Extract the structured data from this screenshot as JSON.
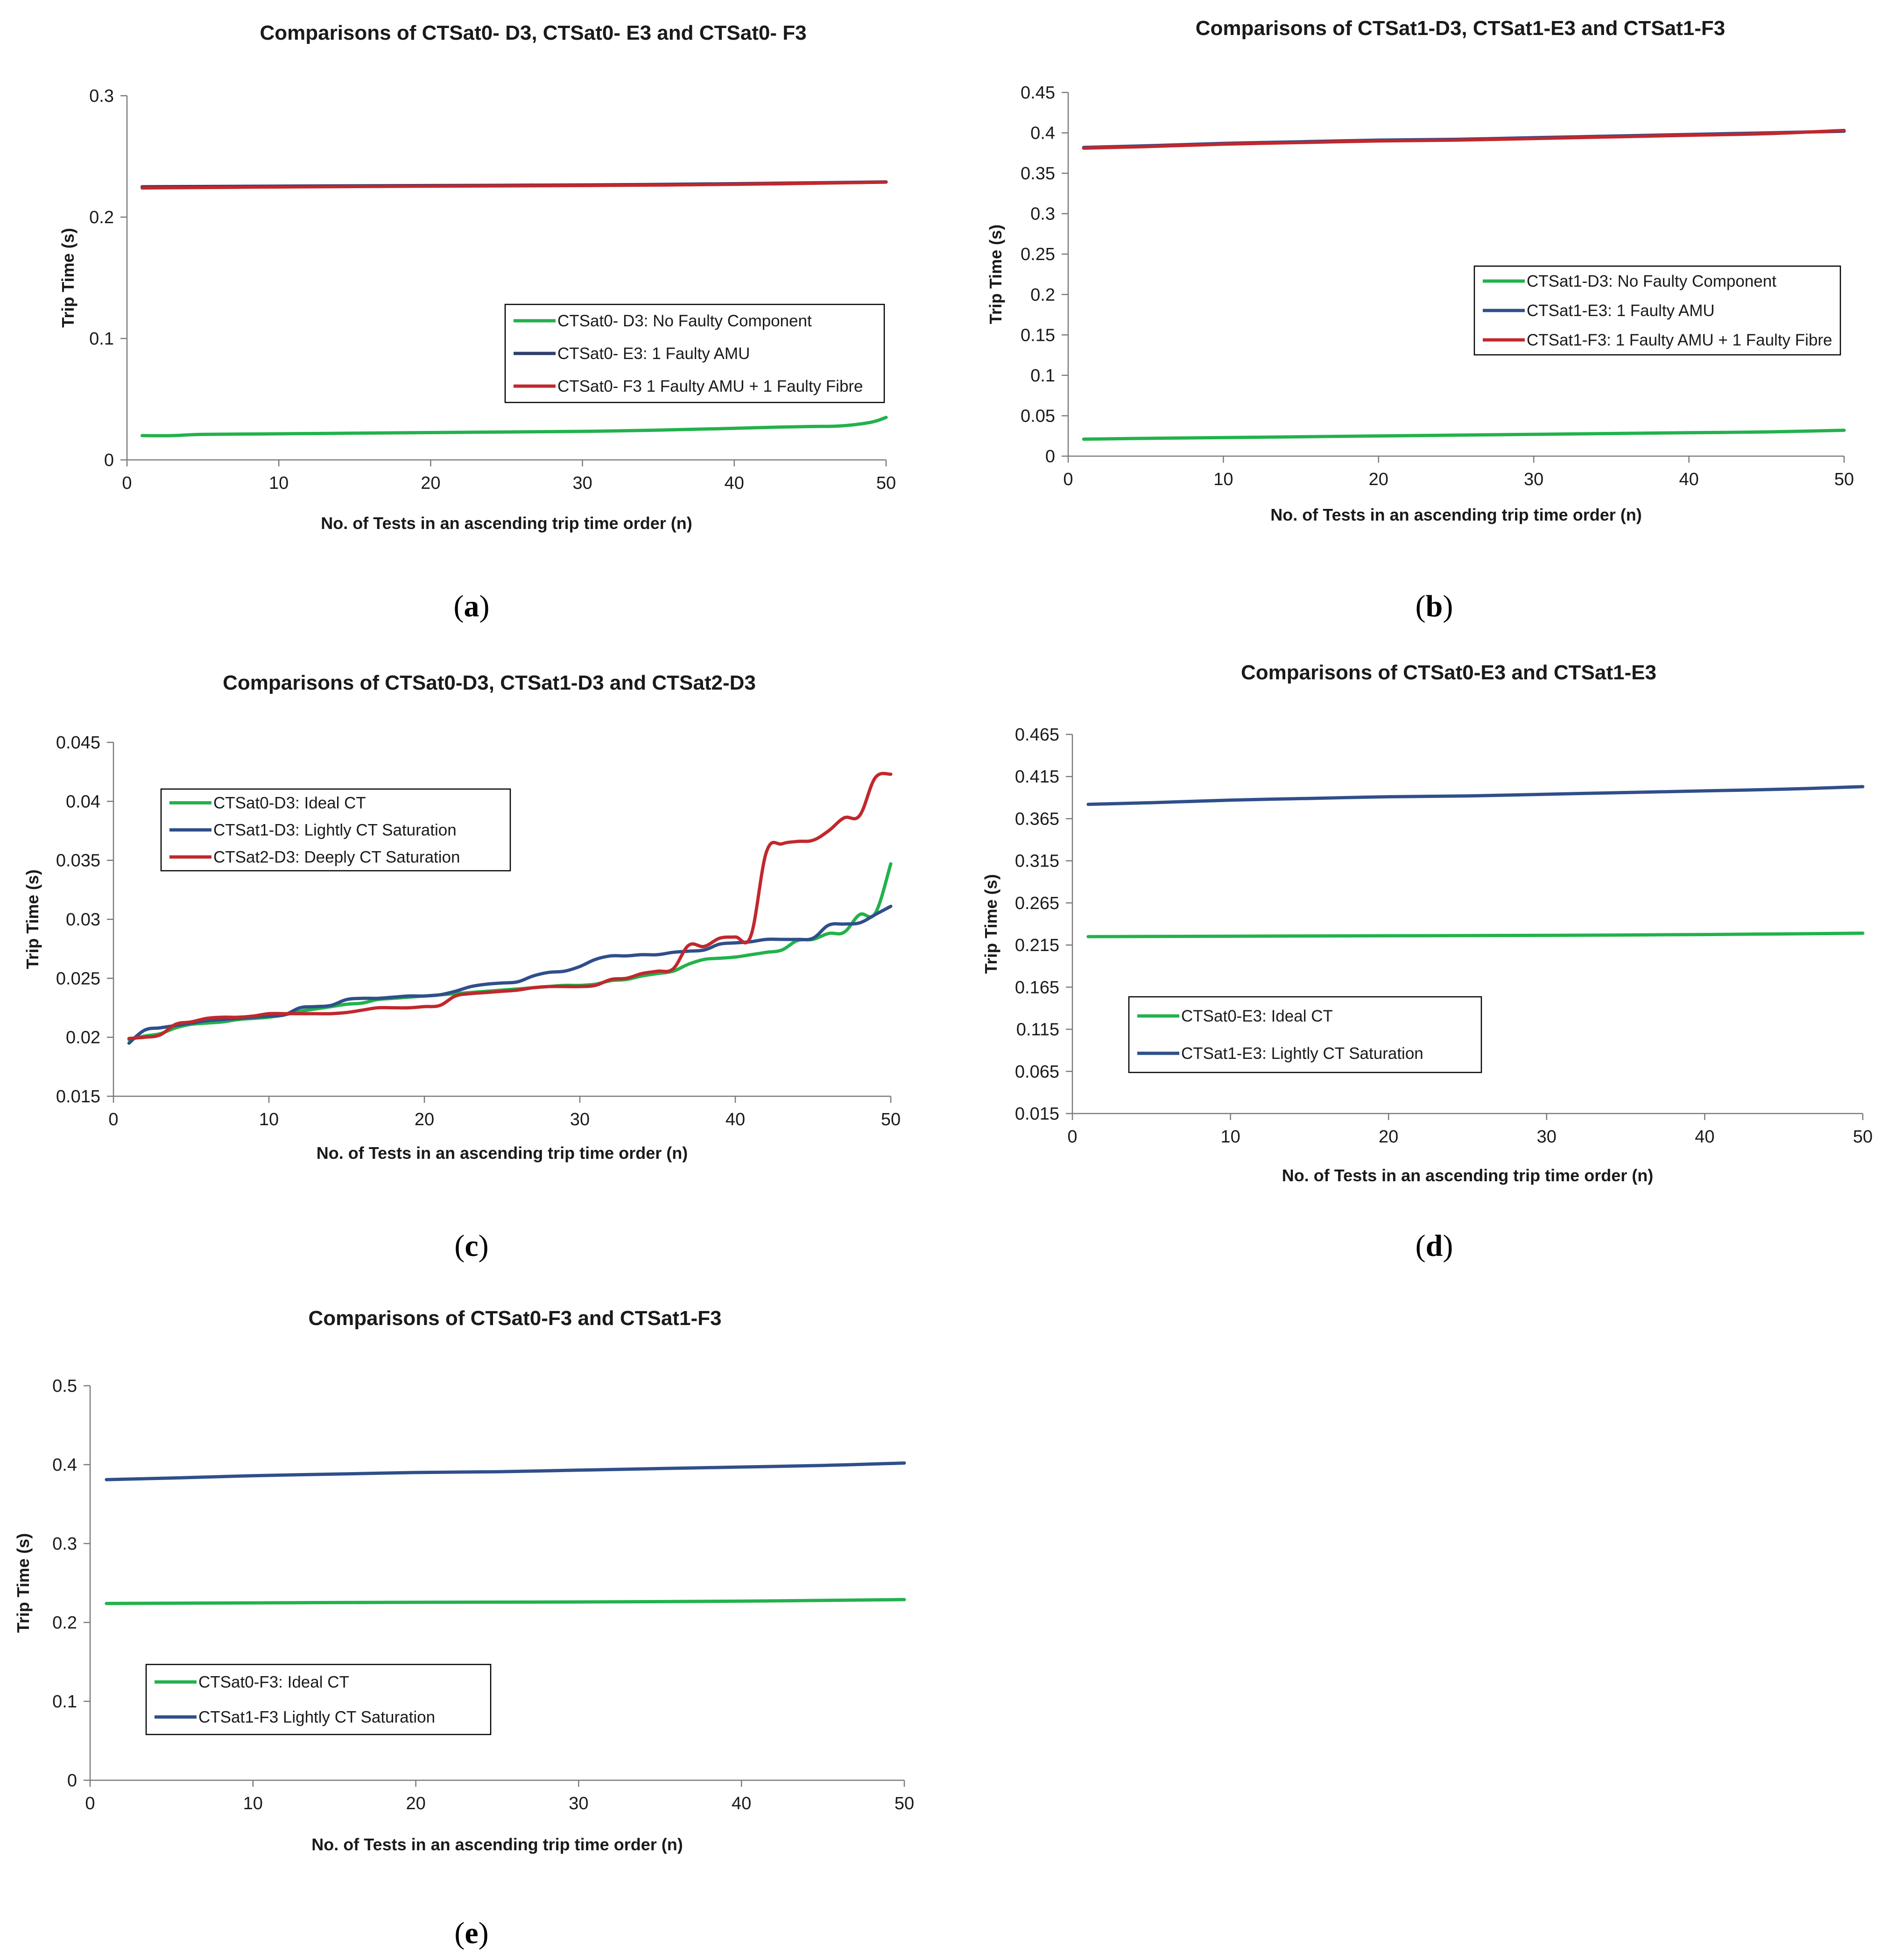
{
  "chart_data": [
    {
      "id": "a",
      "type": "line",
      "caption_letter": "a",
      "title": "Comparisons of CTSat0- D3, CTSat0- E3 and CTSat0- F3",
      "xlabel": "No. of Tests in an ascending trip  time order (n)",
      "ylabel": "Trip Time (s)",
      "xlim": [
        0,
        50
      ],
      "ylim": [
        0,
        0.3
      ],
      "xticks": [
        "0",
        "10",
        "20",
        "30",
        "40",
        "50"
      ],
      "yticks": [
        "0",
        "0.1",
        "0.2",
        "0.3"
      ],
      "legend_position": "middle-right",
      "series": [
        {
          "name": "CTSat0- D3: No Faulty Component",
          "color": "#22b24c",
          "x": [
            1,
            3,
            5,
            10,
            15,
            20,
            25,
            30,
            35,
            40,
            43,
            45,
            47,
            49,
            50
          ],
          "y": [
            0.02,
            0.02,
            0.021,
            0.0215,
            0.022,
            0.0225,
            0.023,
            0.0235,
            0.0245,
            0.026,
            0.027,
            0.0275,
            0.028,
            0.031,
            0.035
          ]
        },
        {
          "name": "CTSat0- E3: 1 Faulty AMU",
          "color": "#2f3f6b",
          "x": [
            1,
            10,
            20,
            30,
            40,
            50
          ],
          "y": [
            0.225,
            0.2255,
            0.226,
            0.2265,
            0.2275,
            0.229
          ]
        },
        {
          "name": "CTSat0- F3 1 Faulty AMU + 1 Faulty Fibre",
          "color": "#c0282d",
          "x": [
            1,
            10,
            20,
            30,
            40,
            50
          ],
          "y": [
            0.224,
            0.2248,
            0.2255,
            0.226,
            0.227,
            0.2288
          ]
        }
      ]
    },
    {
      "id": "b",
      "type": "line",
      "caption_letter": "b",
      "title": "Comparisons of CTSat1-D3, CTSat1-E3 and CTSat1-F3",
      "xlabel": "No. of Tests in an ascending trip time order (n)",
      "ylabel": "Trip Time (s)",
      "xlim": [
        0,
        50
      ],
      "ylim": [
        0,
        0.45
      ],
      "xticks": [
        "0",
        "10",
        "20",
        "30",
        "40",
        "50"
      ],
      "yticks": [
        "0",
        "0.05",
        "0.1",
        "0.15",
        "0.2",
        "0.25",
        "0.3",
        "0.35",
        "0.4",
        "0.45"
      ],
      "legend_position": "middle-right",
      "series": [
        {
          "name": "CTSat1-D3: No Faulty Component",
          "color": "#22b24c",
          "x": [
            1,
            5,
            10,
            15,
            20,
            25,
            30,
            35,
            40,
            45,
            50
          ],
          "y": [
            0.021,
            0.022,
            0.023,
            0.024,
            0.025,
            0.026,
            0.027,
            0.028,
            0.029,
            0.03,
            0.032
          ]
        },
        {
          "name": "CTSat1-E3: 1 Faulty AMU",
          "color": "#2f4f8a",
          "x": [
            1,
            5,
            10,
            15,
            20,
            25,
            30,
            35,
            40,
            45,
            50
          ],
          "y": [
            0.382,
            0.384,
            0.387,
            0.389,
            0.391,
            0.392,
            0.394,
            0.396,
            0.398,
            0.4,
            0.402
          ]
        },
        {
          "name": "CTSat1-F3: 1 Faulty AMU + 1 Faulty Fibre",
          "color": "#c0282d",
          "x": [
            1,
            5,
            10,
            15,
            20,
            25,
            30,
            35,
            40,
            45,
            50
          ],
          "y": [
            0.381,
            0.383,
            0.386,
            0.388,
            0.39,
            0.391,
            0.393,
            0.395,
            0.397,
            0.399,
            0.403
          ]
        }
      ]
    },
    {
      "id": "c",
      "type": "line",
      "caption_letter": "c",
      "title": "Comparisons of CTSat0-D3, CTSat1-D3 and CTSat2-D3",
      "xlabel": "No. of Tests in an ascending trip time order (n)",
      "ylabel": "Trip Time (s)",
      "xlim": [
        0,
        50
      ],
      "ylim": [
        0.015,
        0.045
      ],
      "xticks": [
        "0",
        "10",
        "20",
        "30",
        "40",
        "50"
      ],
      "yticks": [
        "0.015",
        "0.02",
        "0.025",
        "0.03",
        "0.035",
        "0.04",
        "0.045"
      ],
      "legend_position": "top-left",
      "series": [
        {
          "name": "CTSat0-D3: Ideal CT",
          "color": "#22b24c",
          "x": [
            1,
            2,
            3,
            4,
            5,
            6,
            7,
            8,
            9,
            10,
            11,
            12,
            13,
            14,
            15,
            16,
            17,
            18,
            19,
            20,
            21,
            22,
            23,
            24,
            25,
            26,
            27,
            28,
            29,
            30,
            31,
            32,
            33,
            34,
            35,
            36,
            37,
            38,
            39,
            40,
            41,
            42,
            43,
            44,
            45,
            46,
            47,
            48,
            49,
            50
          ],
          "y": [
            0.0198,
            0.0201,
            0.0203,
            0.0208,
            0.0211,
            0.0212,
            0.0213,
            0.0215,
            0.0216,
            0.0217,
            0.0219,
            0.0222,
            0.0224,
            0.0226,
            0.0228,
            0.0229,
            0.0232,
            0.0233,
            0.0234,
            0.0235,
            0.0236,
            0.0237,
            0.0238,
            0.0239,
            0.024,
            0.0241,
            0.0242,
            0.0243,
            0.0244,
            0.0244,
            0.0245,
            0.0248,
            0.0249,
            0.0252,
            0.0254,
            0.0256,
            0.0262,
            0.0266,
            0.0267,
            0.0268,
            0.027,
            0.0272,
            0.0274,
            0.0282,
            0.0283,
            0.0288,
            0.0289,
            0.0304,
            0.0305,
            0.0347
          ]
        },
        {
          "name": "CTSat1-D3: Lightly CT Saturation",
          "color": "#2f4f8a",
          "x": [
            1,
            2,
            3,
            4,
            5,
            6,
            7,
            8,
            9,
            10,
            11,
            12,
            13,
            14,
            15,
            16,
            17,
            18,
            19,
            20,
            21,
            22,
            23,
            24,
            25,
            26,
            27,
            28,
            29,
            30,
            31,
            32,
            33,
            34,
            35,
            36,
            37,
            38,
            39,
            40,
            41,
            42,
            43,
            44,
            45,
            46,
            47,
            48,
            49,
            50
          ],
          "y": [
            0.0195,
            0.0206,
            0.0208,
            0.021,
            0.0212,
            0.0214,
            0.0215,
            0.0216,
            0.0217,
            0.0218,
            0.0219,
            0.0225,
            0.0226,
            0.0227,
            0.0232,
            0.0233,
            0.0233,
            0.0234,
            0.0235,
            0.0235,
            0.0236,
            0.0239,
            0.0243,
            0.0245,
            0.0246,
            0.0247,
            0.0252,
            0.0255,
            0.0256,
            0.026,
            0.0266,
            0.0269,
            0.0269,
            0.027,
            0.027,
            0.0272,
            0.0273,
            0.0274,
            0.0279,
            0.028,
            0.0281,
            0.0283,
            0.0283,
            0.0283,
            0.0284,
            0.0295,
            0.0296,
            0.0297,
            0.0304,
            0.0311
          ]
        },
        {
          "name": "CTSat2-D3: Deeply CT Saturation",
          "color": "#c0282d",
          "x": [
            1,
            2,
            3,
            4,
            5,
            6,
            7,
            8,
            9,
            10,
            11,
            12,
            13,
            14,
            15,
            16,
            17,
            18,
            19,
            20,
            21,
            22,
            23,
            24,
            25,
            26,
            27,
            28,
            29,
            30,
            31,
            32,
            33,
            34,
            35,
            36,
            37,
            38,
            39,
            40,
            41,
            42,
            43,
            44,
            45,
            46,
            47,
            48,
            49,
            50
          ],
          "y": [
            0.0199,
            0.02,
            0.0202,
            0.0211,
            0.0213,
            0.0216,
            0.0217,
            0.0217,
            0.0218,
            0.022,
            0.022,
            0.022,
            0.022,
            0.022,
            0.0221,
            0.0223,
            0.0225,
            0.0225,
            0.0225,
            0.0226,
            0.0227,
            0.0235,
            0.0237,
            0.0238,
            0.0239,
            0.024,
            0.0242,
            0.0243,
            0.0243,
            0.0243,
            0.0244,
            0.0249,
            0.025,
            0.0254,
            0.0256,
            0.0258,
            0.0278,
            0.0277,
            0.0284,
            0.0285,
            0.0286,
            0.0357,
            0.0364,
            0.0366,
            0.0367,
            0.0375,
            0.0386,
            0.0388,
            0.042,
            0.0423
          ]
        }
      ]
    },
    {
      "id": "d",
      "type": "line",
      "caption_letter": "d",
      "title": "Comparisons of CTSat0-E3 and CTSat1-E3",
      "xlabel": "No. of Tests in an ascending trip time order (n)",
      "ylabel": "Trip Time (s)",
      "xlim": [
        0,
        50
      ],
      "ylim": [
        0.015,
        0.465
      ],
      "xticks": [
        "0",
        "10",
        "20",
        "30",
        "40",
        "50"
      ],
      "yticks": [
        "0.015",
        "0.065",
        "0.115",
        "0.165",
        "0.215",
        "0.265",
        "0.315",
        "0.365",
        "0.415",
        "0.465"
      ],
      "legend_position": "bottom-left",
      "series": [
        {
          "name": "CTSat0-E3: Ideal CT",
          "color": "#22b24c",
          "x": [
            1,
            10,
            20,
            30,
            40,
            50
          ],
          "y": [
            0.225,
            0.2255,
            0.226,
            0.2265,
            0.2275,
            0.229
          ]
        },
        {
          "name": "CTSat1-E3: Lightly CT Saturation",
          "color": "#2f4f8a",
          "x": [
            1,
            5,
            10,
            15,
            20,
            25,
            30,
            35,
            40,
            45,
            50
          ],
          "y": [
            0.382,
            0.384,
            0.387,
            0.389,
            0.391,
            0.392,
            0.394,
            0.396,
            0.398,
            0.4,
            0.403
          ]
        }
      ]
    },
    {
      "id": "e",
      "type": "line",
      "caption_letter": "e",
      "title": "Comparisons of CTSat0-F3 and CTSat1-F3",
      "xlabel": "No. of Tests in an ascending trip time order (n)",
      "ylabel": "Trip Time (s)",
      "xlim": [
        0,
        50
      ],
      "ylim": [
        0,
        0.5
      ],
      "xticks": [
        "0",
        "10",
        "20",
        "30",
        "40",
        "50"
      ],
      "yticks": [
        "0",
        "0.1",
        "0.2",
        "0.3",
        "0.4",
        "0.5"
      ],
      "legend_position": "bottom-left",
      "series": [
        {
          "name": "CTSat0-F3: Ideal CT",
          "color": "#22b24c",
          "x": [
            1,
            10,
            20,
            30,
            40,
            50
          ],
          "y": [
            0.224,
            0.2248,
            0.2255,
            0.226,
            0.227,
            0.229
          ]
        },
        {
          "name": "CTSat1-F3 Lightly CT Saturation",
          "color": "#2f4f8a",
          "x": [
            1,
            5,
            10,
            15,
            20,
            25,
            30,
            35,
            40,
            45,
            50
          ],
          "y": [
            0.381,
            0.383,
            0.386,
            0.388,
            0.39,
            0.391,
            0.393,
            0.395,
            0.397,
            0.399,
            0.402
          ]
        }
      ]
    }
  ]
}
